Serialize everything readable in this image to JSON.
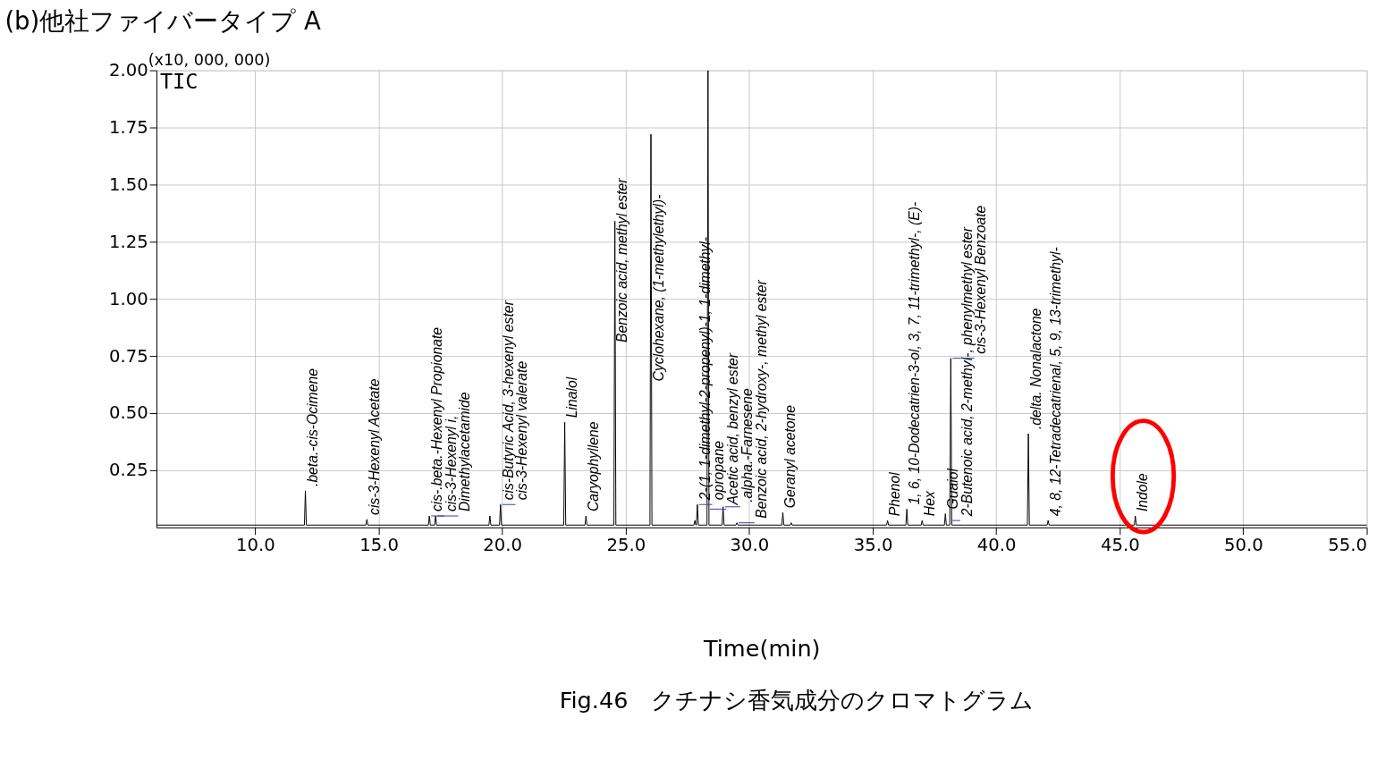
{
  "chart_data": {
    "type": "line",
    "title": "(b)他社ファイバータイプ A",
    "xlabel": "Time(min)",
    "ylabel": "(x10, 000, 000)",
    "xlim": [
      6.0,
      55.0
    ],
    "xticks": [
      {
        "value": 10,
        "label": "10.0"
      },
      {
        "value": 15,
        "label": "15.0"
      },
      {
        "value": 20,
        "label": "20.0"
      },
      {
        "value": 25,
        "label": "25.0"
      },
      {
        "value": 30,
        "label": "30.0"
      },
      {
        "value": 35,
        "label": "35.0"
      },
      {
        "value": 40,
        "label": "40.0"
      },
      {
        "value": 45,
        "label": "45.0"
      },
      {
        "value": 50,
        "label": "50.0"
      },
      {
        "value": 55,
        "label": "55.0"
      }
    ],
    "ylim": [
      0,
      2.0
    ],
    "yticks": [
      {
        "value": 0.25,
        "label": "0.25"
      },
      {
        "value": 0.5,
        "label": "0.50"
      },
      {
        "value": 0.75,
        "label": "0.75"
      },
      {
        "value": 1.0,
        "label": "1.00"
      },
      {
        "value": 1.25,
        "label": "1.25"
      },
      {
        "value": 1.5,
        "label": "1.50"
      },
      {
        "value": 1.75,
        "label": "1.75"
      },
      {
        "value": 2.0,
        "label": "2.00"
      }
    ],
    "grid": true,
    "marker": "none",
    "line_style": "solid",
    "series": [
      {
        "color": "#000000",
        "x": [
          6.0,
          11.99,
          12.03,
          12.07,
          14.48,
          14.52,
          14.56,
          17.01,
          17.05,
          17.09,
          17.26,
          17.3,
          17.34,
          19.46,
          19.5,
          19.54,
          19.89,
          19.93,
          19.97,
          22.49,
          22.53,
          22.57,
          23.35,
          23.39,
          23.43,
          24.52,
          24.56,
          24.6,
          25.98,
          26.02,
          26.06,
          27.76,
          27.8,
          27.84,
          27.86,
          27.9,
          27.94,
          28.29,
          28.33,
          28.37,
          28.9,
          28.94,
          28.98,
          29.46,
          29.5,
          29.54,
          31.32,
          31.36,
          31.4,
          31.66,
          31.7,
          31.74,
          35.56,
          35.6,
          35.64,
          36.34,
          36.38,
          36.42,
          36.96,
          37.0,
          37.04,
          37.9,
          37.94,
          37.98,
          38.12,
          38.16,
          38.2,
          41.26,
          41.3,
          41.34,
          42.06,
          42.1,
          42.14,
          45.59,
          45.63,
          45.67,
          55.0
        ],
        "values": [
          0.01,
          0.01,
          0.16,
          0.01,
          0.01,
          0.035,
          0.01,
          0.01,
          0.05,
          0.01,
          0.01,
          0.05,
          0.01,
          0.01,
          0.05,
          0.01,
          0.01,
          0.1,
          0.01,
          0.01,
          0.46,
          0.01,
          0.01,
          0.05,
          0.01,
          0.01,
          1.34,
          0.01,
          0.01,
          1.72,
          0.01,
          0.01,
          0.03,
          0.01,
          0.01,
          0.1,
          0.01,
          0.01,
          2.0,
          0.01,
          0.01,
          0.09,
          0.01,
          0.01,
          0.02,
          0.01,
          0.01,
          0.065,
          0.01,
          0.01,
          0.02,
          0.01,
          0.01,
          0.03,
          0.01,
          0.01,
          0.08,
          0.01,
          0.01,
          0.03,
          0.01,
          0.01,
          0.06,
          0.01,
          0.01,
          0.74,
          0.01,
          0.01,
          0.41,
          0.01,
          0.01,
          0.03,
          0.01,
          0.01,
          0.05,
          0.01,
          0.01
        ]
      }
    ],
    "annotations": [
      "TIC",
      "Fig.46　クチナシ香気成分のクロマトグラム",
      {
        "text": ".beta.-cis-Ocimene",
        "x": 12.03,
        "y": 0.16
      },
      {
        "text": "cis-3-Hexenyl Acetate",
        "x": 14.52,
        "y": 0.035
      },
      {
        "text": "cis-.beta.-Hexenyl Propionate",
        "x": 17.05,
        "y": 0.05
      },
      {
        "text": "cis-3-Hexenyl i,",
        "x": 17.05,
        "y": 0.05
      },
      {
        "text": "Dimethylacetamide",
        "x": 17.3,
        "y": 0.05
      },
      {
        "text": "cis-Butyric Acid, 3-hexenyl ester",
        "x": 19.93,
        "y": 0.1
      },
      {
        "text": "cis-3-Hexenyl valerate",
        "x": 19.93,
        "y": 0.1
      },
      {
        "text": "Linalol",
        "x": 22.53,
        "y": 0.46
      },
      {
        "text": "Caryophyllene",
        "x": 23.39,
        "y": 0.05
      },
      {
        "text": "Benzoic acid, methyl ester",
        "x": 24.56,
        "y": 0.79
      },
      {
        "text": "Cyclohexane, (1-methylethyl)-",
        "x": 26.02,
        "y": 0.62
      },
      {
        "text": "2-(1, 1-dimethyl-2-propenyl)-1, 1-dimethyl-",
        "x": 27.9,
        "y": 0.1
      },
      {
        "text": "opropane",
        "x": 27.9,
        "y": 0.1
      },
      {
        "text": "Acetic acid, benzyl ester",
        "x": 28.33,
        "y": 0.08
      },
      {
        "text": ".alpha.-Farnesene",
        "x": 28.94,
        "y": 0.09
      },
      {
        "text": "Benzoic acid, 2-hydroxy-, methyl ester",
        "x": 29.5,
        "y": 0.02
      },
      {
        "text": "Geranyl acetone",
        "x": 31.36,
        "y": 0.065
      },
      {
        "text": "Phenol",
        "x": 35.6,
        "y": 0.03
      },
      {
        "text": "1, 6, 10-Dodecatrien-3-ol, 3, 7, 11-trimethyl-, (E)-",
        "x": 36.38,
        "y": 0.08
      },
      {
        "text": "Hex",
        "x": 37.0,
        "y": 0.03
      },
      {
        "text": "Guaiol",
        "x": 37.94,
        "y": 0.06
      },
      {
        "text": "2-Butenoic acid, 2-methyl-, phenylmethyl ester",
        "x": 38.16,
        "y": 0.03
      },
      {
        "text": "cis-3-Hexenyl Benzoate",
        "x": 38.16,
        "y": 0.74
      },
      {
        "text": ".delta. Nonalactone",
        "x": 41.3,
        "y": 0.41
      },
      {
        "text": "4, 8, 12-Tetradecatrienal, 5, 9, 13-trimethyl-",
        "x": 42.1,
        "y": 0.03
      },
      {
        "text": "Indole",
        "x": 45.63,
        "y": 0.05
      }
    ]
  }
}
